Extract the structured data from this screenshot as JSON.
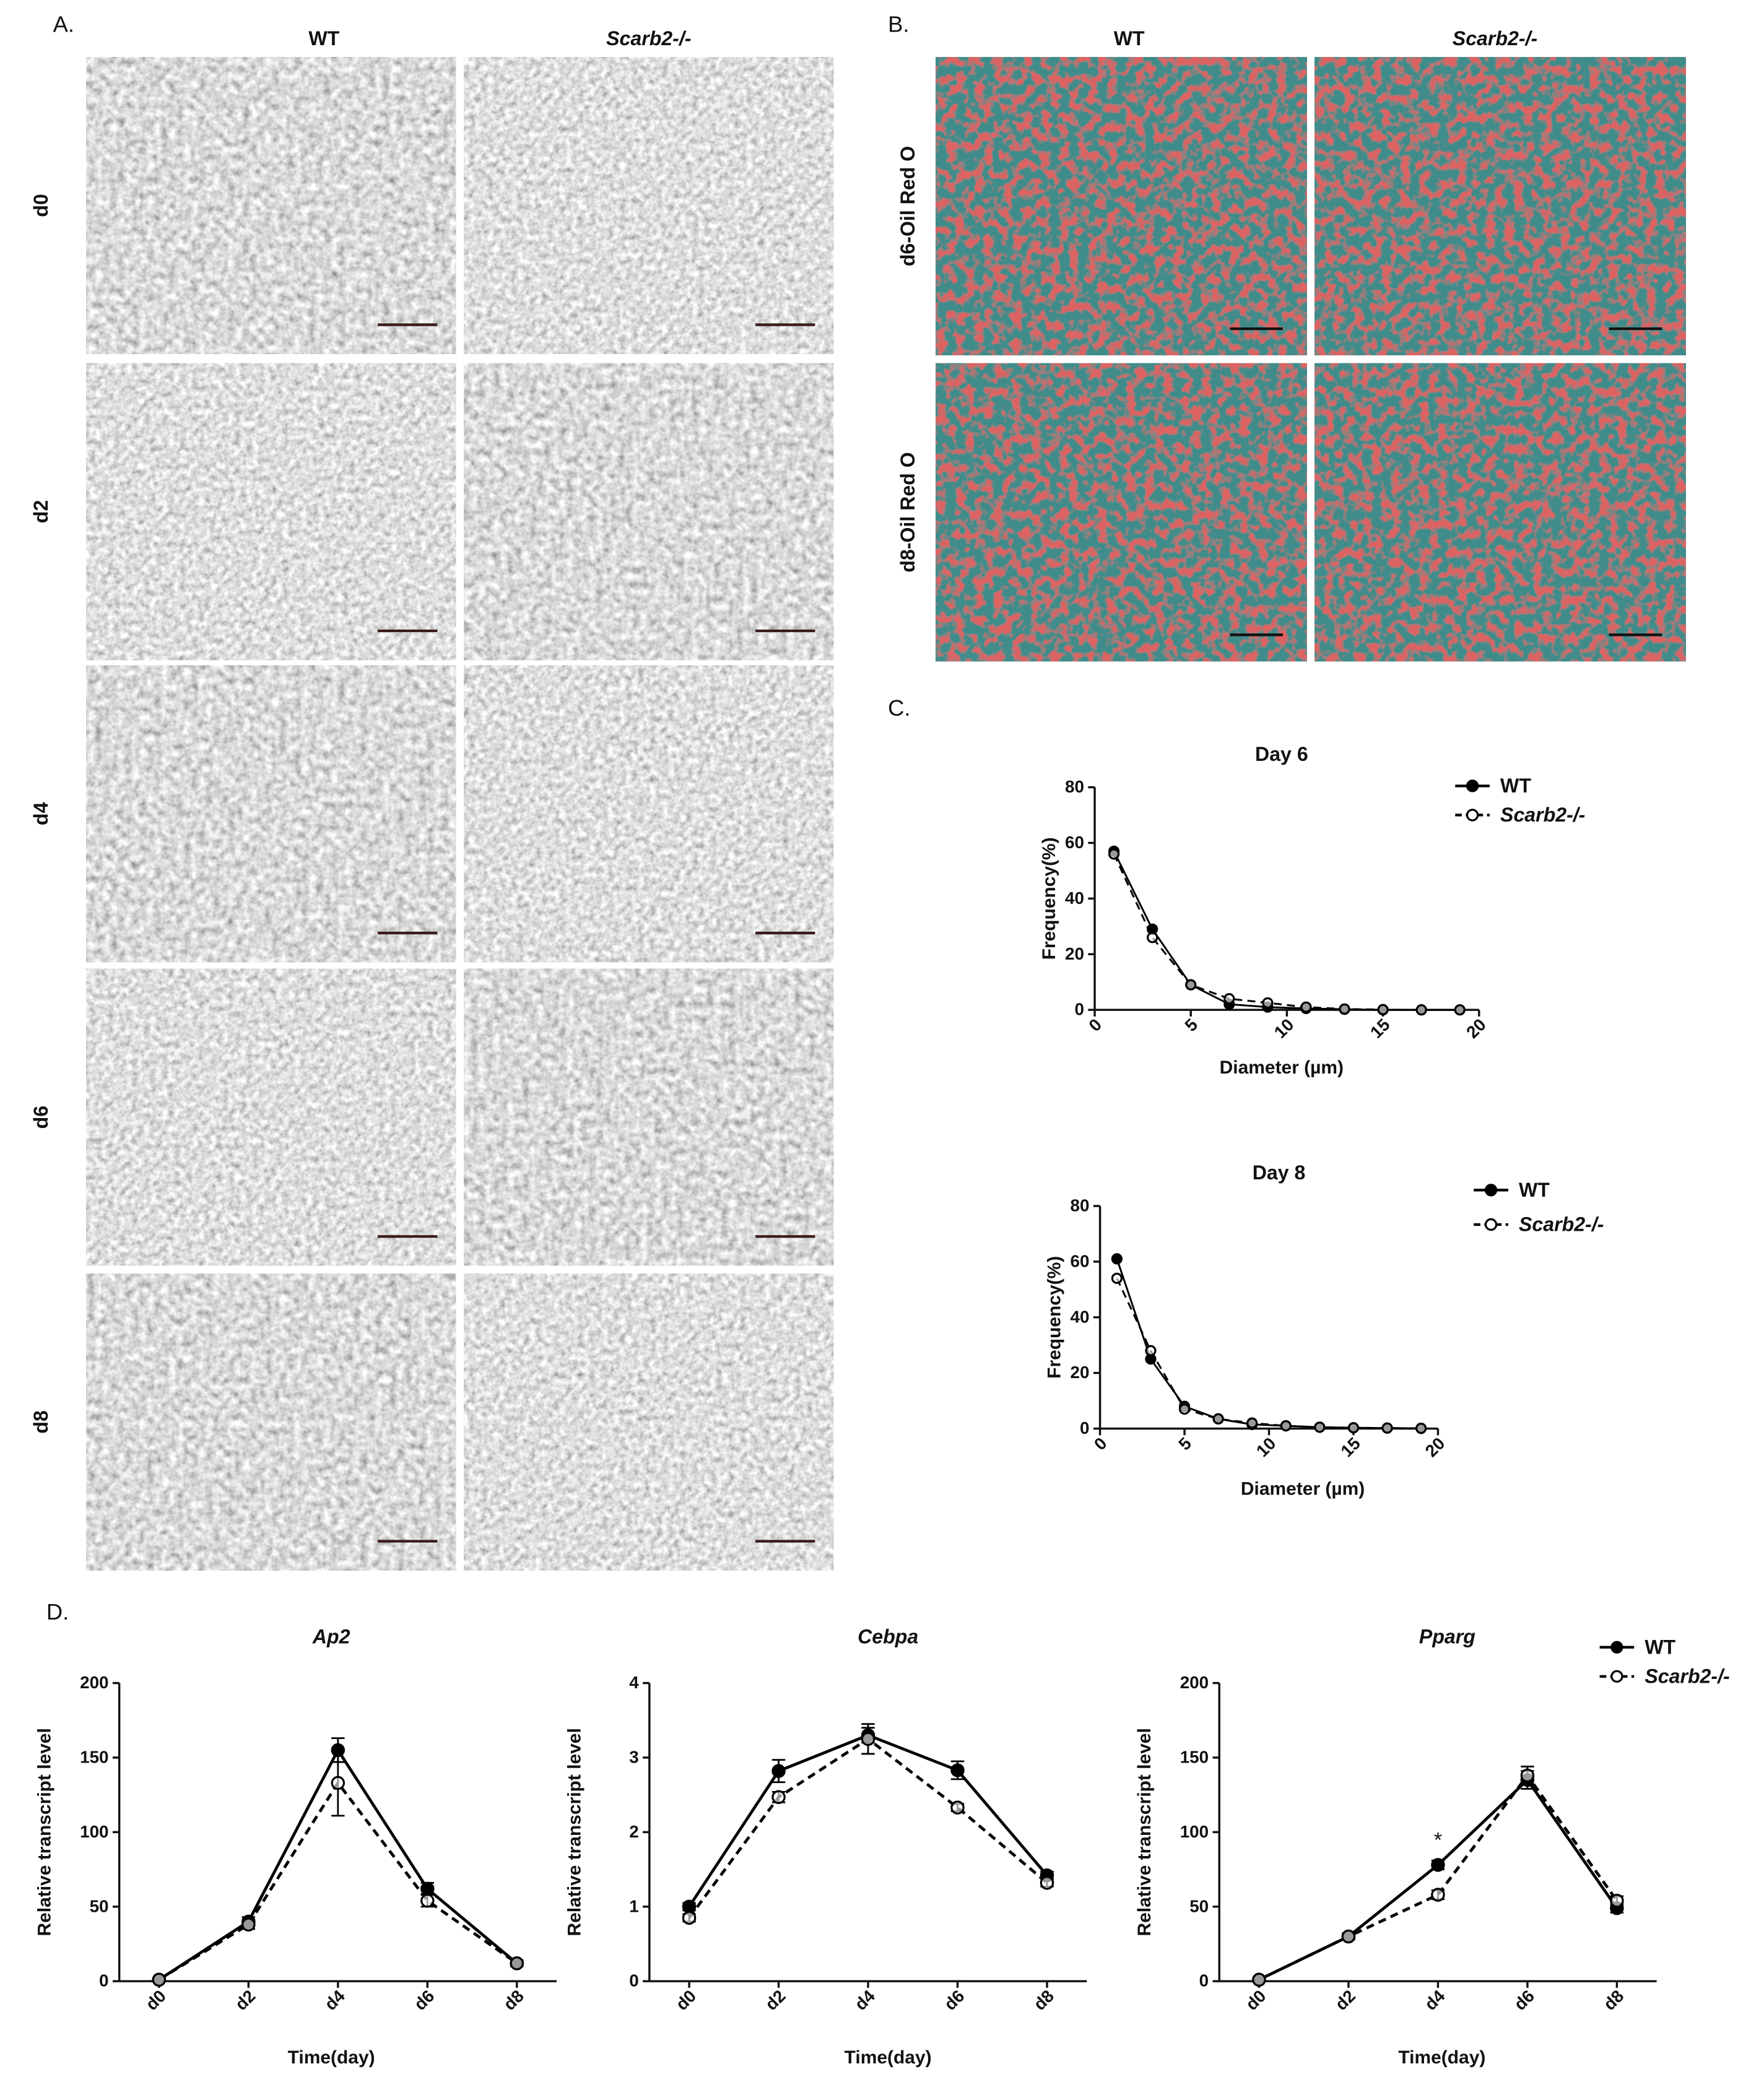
{
  "panel_a": {
    "label": "A.",
    "columns": [
      "WT",
      "Scarb2-/-"
    ],
    "rows": [
      "d0",
      "d2",
      "d4",
      "d6",
      "d8"
    ]
  },
  "panel_b": {
    "label": "B.",
    "columns": [
      "WT",
      "Scarb2-/-"
    ],
    "rows": [
      "d6-Oil Red O",
      "d8-Oil Red O"
    ]
  },
  "panel_c": {
    "label": "C."
  },
  "panel_d": {
    "label": "D."
  },
  "chart_data": [
    {
      "type": "line",
      "title": "Day 6",
      "x_label": "Diameter (µm)",
      "y_label": "Frequency(%)",
      "x": [
        1,
        3,
        5,
        7,
        9,
        11,
        13,
        15,
        17,
        19
      ],
      "series": [
        {
          "name": "WT",
          "color": "#000000",
          "linestyle": "solid",
          "marker": "filled",
          "values": [
            57,
            29,
            9,
            2,
            1,
            0.5,
            0.2,
            0,
            0,
            0
          ]
        },
        {
          "name": "Scarb2-/-",
          "color": "#000000",
          "linestyle": "dashed",
          "marker": "open",
          "values": [
            56,
            26,
            9,
            4,
            2.5,
            1,
            0.3,
            0.1,
            0,
            0
          ]
        }
      ],
      "xlim": [
        0,
        20
      ],
      "xticks": [
        0,
        5,
        10,
        15,
        20
      ],
      "ylim": [
        0,
        80
      ],
      "yticks": [
        0,
        20,
        40,
        60,
        80
      ],
      "legend": "outside-right"
    },
    {
      "type": "line",
      "title": "Day 8",
      "x_label": "Diameter (µm)",
      "y_label": "Frequency(%)",
      "x": [
        1,
        3,
        5,
        7,
        9,
        11,
        13,
        15,
        17,
        19
      ],
      "series": [
        {
          "name": "WT",
          "color": "#000000",
          "linestyle": "solid",
          "marker": "filled",
          "values": [
            61,
            25,
            8,
            3.5,
            1.5,
            1,
            0.5,
            0.3,
            0.2,
            0.1
          ]
        },
        {
          "name": "Scarb2-/-",
          "color": "#000000",
          "linestyle": "dashed",
          "marker": "open",
          "values": [
            54,
            28,
            7,
            3.5,
            2,
            1,
            0.5,
            0.3,
            0.2,
            0.1
          ]
        }
      ],
      "xlim": [
        0,
        20
      ],
      "xticks": [
        0,
        5,
        10,
        15,
        20
      ],
      "ylim": [
        0,
        80
      ],
      "yticks": [
        0,
        20,
        40,
        60,
        80
      ],
      "legend": "outside-right"
    },
    {
      "type": "line",
      "title": "Ap2",
      "x_label": "Time(day)",
      "y_label": "Relative transcript level",
      "categories": [
        "d0",
        "d2",
        "d4",
        "d6",
        "d8"
      ],
      "series": [
        {
          "name": "WT",
          "color": "#000000",
          "linestyle": "solid",
          "marker": "filled",
          "values": [
            1,
            40,
            155,
            62,
            12
          ],
          "errors": [
            1,
            3,
            8,
            4,
            2
          ]
        },
        {
          "name": "Scarb2-/-",
          "color": "#000000",
          "linestyle": "dashed",
          "marker": "open",
          "values": [
            1,
            38,
            133,
            54,
            12
          ],
          "errors": [
            1,
            3,
            22,
            4,
            2
          ]
        }
      ],
      "ylim": [
        0,
        200
      ],
      "yticks": [
        0,
        50,
        100,
        150,
        200
      ]
    },
    {
      "type": "line",
      "title": "Cebpa",
      "x_label": "Time(day)",
      "y_label": "Relative transcript level",
      "categories": [
        "d0",
        "d2",
        "d4",
        "d6",
        "d8"
      ],
      "series": [
        {
          "name": "WT",
          "color": "#000000",
          "linestyle": "solid",
          "marker": "filled",
          "values": [
            1.0,
            2.82,
            3.3,
            2.83,
            1.42
          ],
          "errors": [
            0.05,
            0.15,
            0.1,
            0.12,
            0.05
          ]
        },
        {
          "name": "Scarb2-/-",
          "color": "#000000",
          "linestyle": "dashed",
          "marker": "open",
          "values": [
            0.85,
            2.47,
            3.25,
            2.33,
            1.32
          ],
          "errors": [
            0.05,
            0.07,
            0.2,
            0.05,
            0.05
          ]
        }
      ],
      "ylim": [
        0,
        4
      ],
      "yticks": [
        0,
        1,
        2,
        3,
        4
      ]
    },
    {
      "type": "line",
      "title": "Pparg",
      "x_label": "Time(day)",
      "y_label": "Relative transcript level",
      "categories": [
        "d0",
        "d2",
        "d4",
        "d6",
        "d8"
      ],
      "series": [
        {
          "name": "WT",
          "color": "#000000",
          "linestyle": "solid",
          "marker": "filled",
          "values": [
            1,
            30,
            78,
            135,
            49
          ],
          "errors": [
            1,
            2,
            3,
            6,
            3
          ]
        },
        {
          "name": "Scarb2-/-",
          "color": "#000000",
          "linestyle": "dashed",
          "marker": "open",
          "values": [
            1,
            30,
            58,
            138,
            54
          ],
          "errors": [
            1,
            2,
            3,
            6,
            3
          ]
        }
      ],
      "ylim": [
        0,
        200
      ],
      "yticks": [
        0,
        50,
        100,
        150,
        200
      ],
      "legend": "top-right",
      "annotation": "*",
      "annotation_at": 2
    }
  ]
}
